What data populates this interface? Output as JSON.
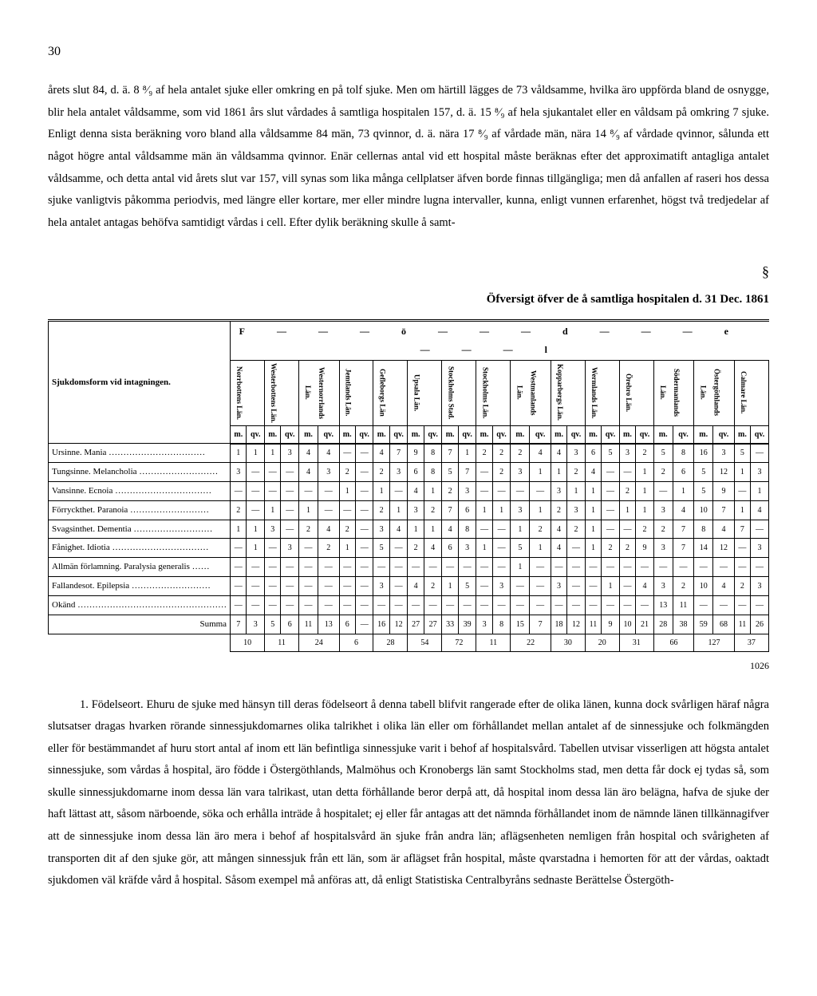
{
  "page_number": "30",
  "para1": "årets slut 84, d. ä. 8 ⁸⁄₉ af hela antalet sjuke eller omkring en på tolf sjuke. Men om härtill lägges de 73 våldsamme, hvilka äro uppförda bland de osnygge, blir hela antalet våldsamme, som vid 1861 års slut vårdades å samtliga hospitalen 157, d. ä. 15 ⁸⁄₉ af hela sjukantalet eller en våldsam på omkring 7 sjuke. Enligt denna sista beräkning voro bland alla våldsamme 84 män, 73 qvinnor, d. ä. nära 17 ⁸⁄₉ af vårdade män, nära 14 ⁸⁄₉ af vårdade qvinnor, sålunda ett något högre antal våldsamme män än våldsamma qvinnor. Enär cellernas antal vid ett hospital måste beräknas efter det approximatift antagliga antalet våldsamme, och detta antal vid årets slut var 157, vill synas som lika många cellplatser äfven borde finnas tillgängliga; men då anfallen af raseri hos dessa sjuke vanligtvis påkomma periodvis, med längre eller kortare, mer eller mindre lugna intervaller, kunna, enligt vunnen erfarenhet, högst två tredjedelar af hela antalet antagas behöfva samtidigt vårdas i cell. Efter dylik beräkning skulle å samt-",
  "section_symbol": "§",
  "table_title": "Öfversigt öfver de å samtliga hospitalen d. 31 Dec. 1861",
  "fodel_header": "F———ö———d———e———l",
  "row_header": "Sjukdomsform vid intagningen.",
  "columns": [
    "Norrbottens Län.",
    "Westerbottens Län.",
    "Westernorrlands Län.",
    "Jemtlands Län.",
    "Gefleborgs Län",
    "Upsala Län.",
    "Stockholms Stad.",
    "Stockholms Län.",
    "Westmanlands Län.",
    "Kopparbergs Län.",
    "Wermlands Län.",
    "Örebro Län.",
    "Södermanlands Län.",
    "Östergöthlands Län.",
    "Calmare Län."
  ],
  "mq": [
    "m.",
    "qv."
  ],
  "rows": [
    {
      "label": "Ursinne.  Mania ……………………………",
      "vals": [
        "1",
        "1",
        "1",
        "3",
        "4",
        "4",
        "—",
        "—",
        "4",
        "7",
        "9",
        "8",
        "7",
        "1",
        "2",
        "2",
        "2",
        "4",
        "4",
        "3",
        "6",
        "5",
        "3",
        "2",
        "5",
        "8",
        "16",
        "3",
        "5"
      ]
    },
    {
      "label": "Tungsinne.  Melancholia ………………………",
      "vals": [
        "3",
        "—",
        "—",
        "—",
        "4",
        "3",
        "2",
        "—",
        "2",
        "3",
        "6",
        "8",
        "5",
        "7",
        "—",
        "2",
        "3",
        "1",
        "1",
        "2",
        "4",
        "—",
        "—",
        "1",
        "2",
        "6",
        "5",
        "12",
        "1",
        "3"
      ]
    },
    {
      "label": "Vansinne.  Ecnoia ……………………………",
      "vals": [
        "—",
        "—",
        "—",
        "—",
        "—",
        "—",
        "1",
        "—",
        "1",
        "—",
        "4",
        "1",
        "2",
        "3",
        "—",
        "—",
        "—",
        "—",
        "3",
        "1",
        "1",
        "—",
        "2",
        "1",
        "—",
        "1",
        "5",
        "9",
        "—",
        "1"
      ]
    },
    {
      "label": "Förryckthet.  Paranoia ………………………",
      "vals": [
        "2",
        "—",
        "1",
        "—",
        "1",
        "—",
        "—",
        "—",
        "2",
        "1",
        "3",
        "2",
        "7",
        "6",
        "1",
        "1",
        "3",
        "1",
        "2",
        "3",
        "1",
        "—",
        "1",
        "1",
        "3",
        "4",
        "10",
        "7",
        "1",
        "4"
      ]
    },
    {
      "label": "Svagsinthet.  Dementia ………………………",
      "vals": [
        "1",
        "1",
        "3",
        "—",
        "2",
        "4",
        "2",
        "—",
        "3",
        "4",
        "1",
        "1",
        "4",
        "8",
        "—",
        "—",
        "1",
        "2",
        "4",
        "2",
        "1",
        "—",
        "—",
        "2",
        "2",
        "7",
        "8",
        "4",
        "7"
      ]
    },
    {
      "label": "Fånighet.  Idiotia ……………………………",
      "vals": [
        "—",
        "1",
        "—",
        "3",
        "—",
        "2",
        "1",
        "—",
        "5",
        "—",
        "2",
        "4",
        "6",
        "3",
        "1",
        "—",
        "5",
        "1",
        "4",
        "—",
        "1",
        "2",
        "2",
        "9",
        "3",
        "7",
        "14",
        "12",
        "—",
        "3"
      ]
    },
    {
      "label": "Allmän förlamning.  Paralysia generalis ……",
      "vals": [
        "—",
        "—",
        "—",
        "—",
        "—",
        "—",
        "—",
        "—",
        "—",
        "—",
        "—",
        "—",
        "—",
        "—",
        "—",
        "—",
        "1",
        "—",
        "—",
        "—",
        "—",
        "—",
        "—",
        "—",
        "—",
        "—",
        "—",
        "—",
        "—",
        "—"
      ]
    },
    {
      "label": "Fallandesot.  Epilepsia ………………………",
      "vals": [
        "—",
        "—",
        "—",
        "—",
        "—",
        "—",
        "—",
        "—",
        "3",
        "—",
        "4",
        "2",
        "1",
        "5",
        "—",
        "3",
        "—",
        "—",
        "3",
        "—",
        "—",
        "1",
        "—",
        "4",
        "3",
        "2",
        "10",
        "4",
        "2",
        "3"
      ]
    },
    {
      "label": "Okänd ……………………………………………",
      "vals": [
        "—",
        "—",
        "—",
        "—",
        "—",
        "—",
        "—",
        "—",
        "—",
        "—",
        "—",
        "—",
        "—",
        "—",
        "—",
        "—",
        "—",
        "—",
        "—",
        "—",
        "—",
        "—",
        "—",
        "—",
        "13",
        "11",
        "—",
        "—",
        "—",
        "—"
      ]
    }
  ],
  "summa_label": "Summa",
  "summa": [
    "7",
    "3",
    "5",
    "6",
    "11",
    "13",
    "6",
    "—",
    "16",
    "12",
    "27",
    "27",
    "33",
    "39",
    "3",
    "8",
    "15",
    "7",
    "18",
    "12",
    "11",
    "9",
    "10",
    "21",
    "28",
    "38",
    "59",
    "68",
    "11",
    "26"
  ],
  "col_totals": [
    "10",
    "11",
    "24",
    "6",
    "28",
    "54",
    "72",
    "11",
    "22",
    "30",
    "20",
    "31",
    "66",
    "127",
    "37"
  ],
  "grand_total": "1026",
  "para2": "1.  Födelseort.  Ehuru de sjuke med hänsyn till deras födelseort å denna tabell blifvit rangerade efter de olika länen, kunna dock svårligen häraf några slutsatser dragas hvarken rörande sinnessjukdomarnes olika talrikhet i olika län eller om förhållandet mellan antalet af de sinnessjuke och folkmängden eller för bestämmandet af huru stort antal af inom ett län befintliga sinnessjuke varit i behof af hospitalsvård. Tabellen utvisar visserligen att högsta antalet sinnessjuke, som vårdas å hospital, äro födde i Östergöthlands, Malmöhus och Kronobergs län samt Stockholms stad, men detta får dock ej tydas så, som skulle sinnessjukdomarne inom dessa län vara talrikast, utan detta förhållande beror derpå att, då hospital inom dessa län äro belägna, hafva de sjuke der haft lättast att, såsom närboende, söka och erhålla inträde å hospitalet; ej eller får antagas att det nämnda förhållandet inom de nämnde länen tillkännagifver att de sinnessjuke inom dessa län äro mera i behof af hospitalsvård än sjuke från andra län; aflägsenheten nemligen från hospital och svårigheten af transporten dit af den sjuke gör, att mången sinnessjuk från ett län, som är aflägset från hospital, måste qvarstadna i hemorten för att der vårdas, oaktadt sjukdomen väl kräfde vård å hospital. Såsom exempel må anföras att, då enligt Statistiska Centralbyråns sednaste Berättelse Östergöth-"
}
